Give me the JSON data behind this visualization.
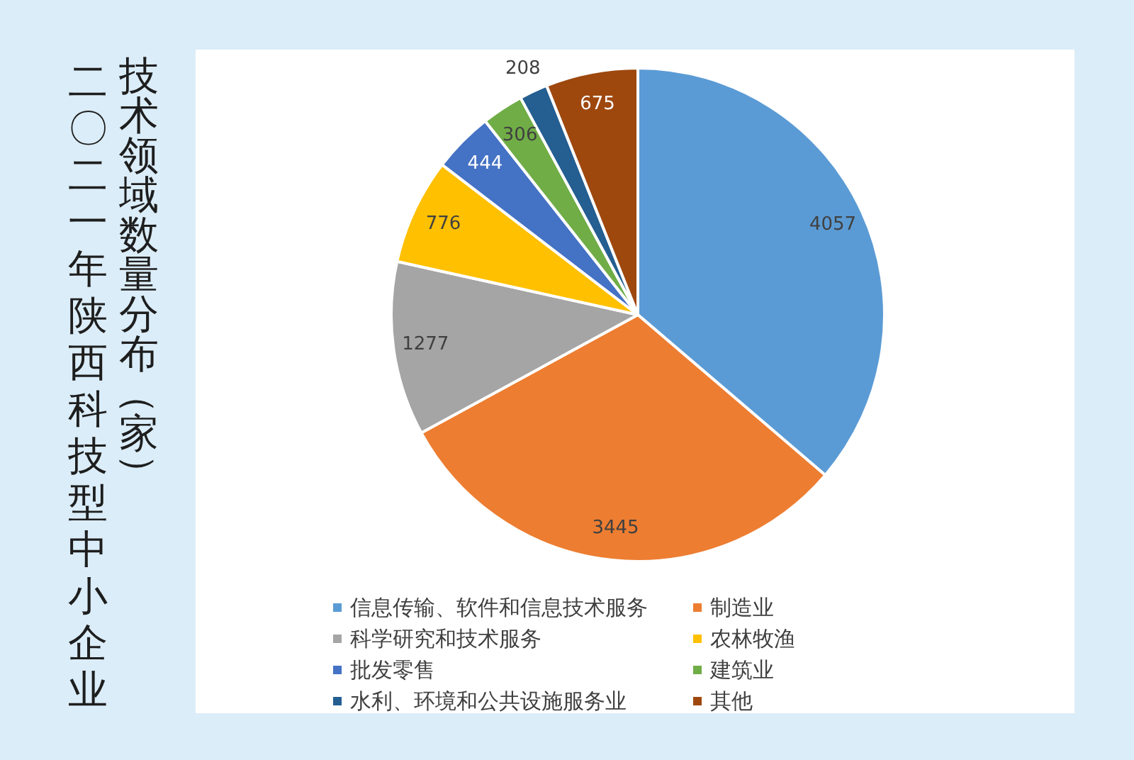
{
  "chart_data": {
    "type": "pie",
    "title": "二〇二一年陕西科技型中小企业",
    "subtitle": "技术领域数量分布（家）",
    "categories": [
      "信息传输、软件和信息技术服务",
      "制造业",
      "科学研究和技术服务",
      "农林牧渔",
      "批发零售",
      "建筑业",
      "水利、环境和公共设施服务业",
      "其他"
    ],
    "values": [
      4057,
      3445,
      1277,
      776,
      444,
      306,
      208,
      675
    ],
    "colors": [
      "#5b9bd5",
      "#ed7d31",
      "#a5a5a5",
      "#ffc000",
      "#4472c4",
      "#70ad47",
      "#255e91",
      "#9e480e"
    ],
    "data_labels": true,
    "legend": "bottom"
  }
}
